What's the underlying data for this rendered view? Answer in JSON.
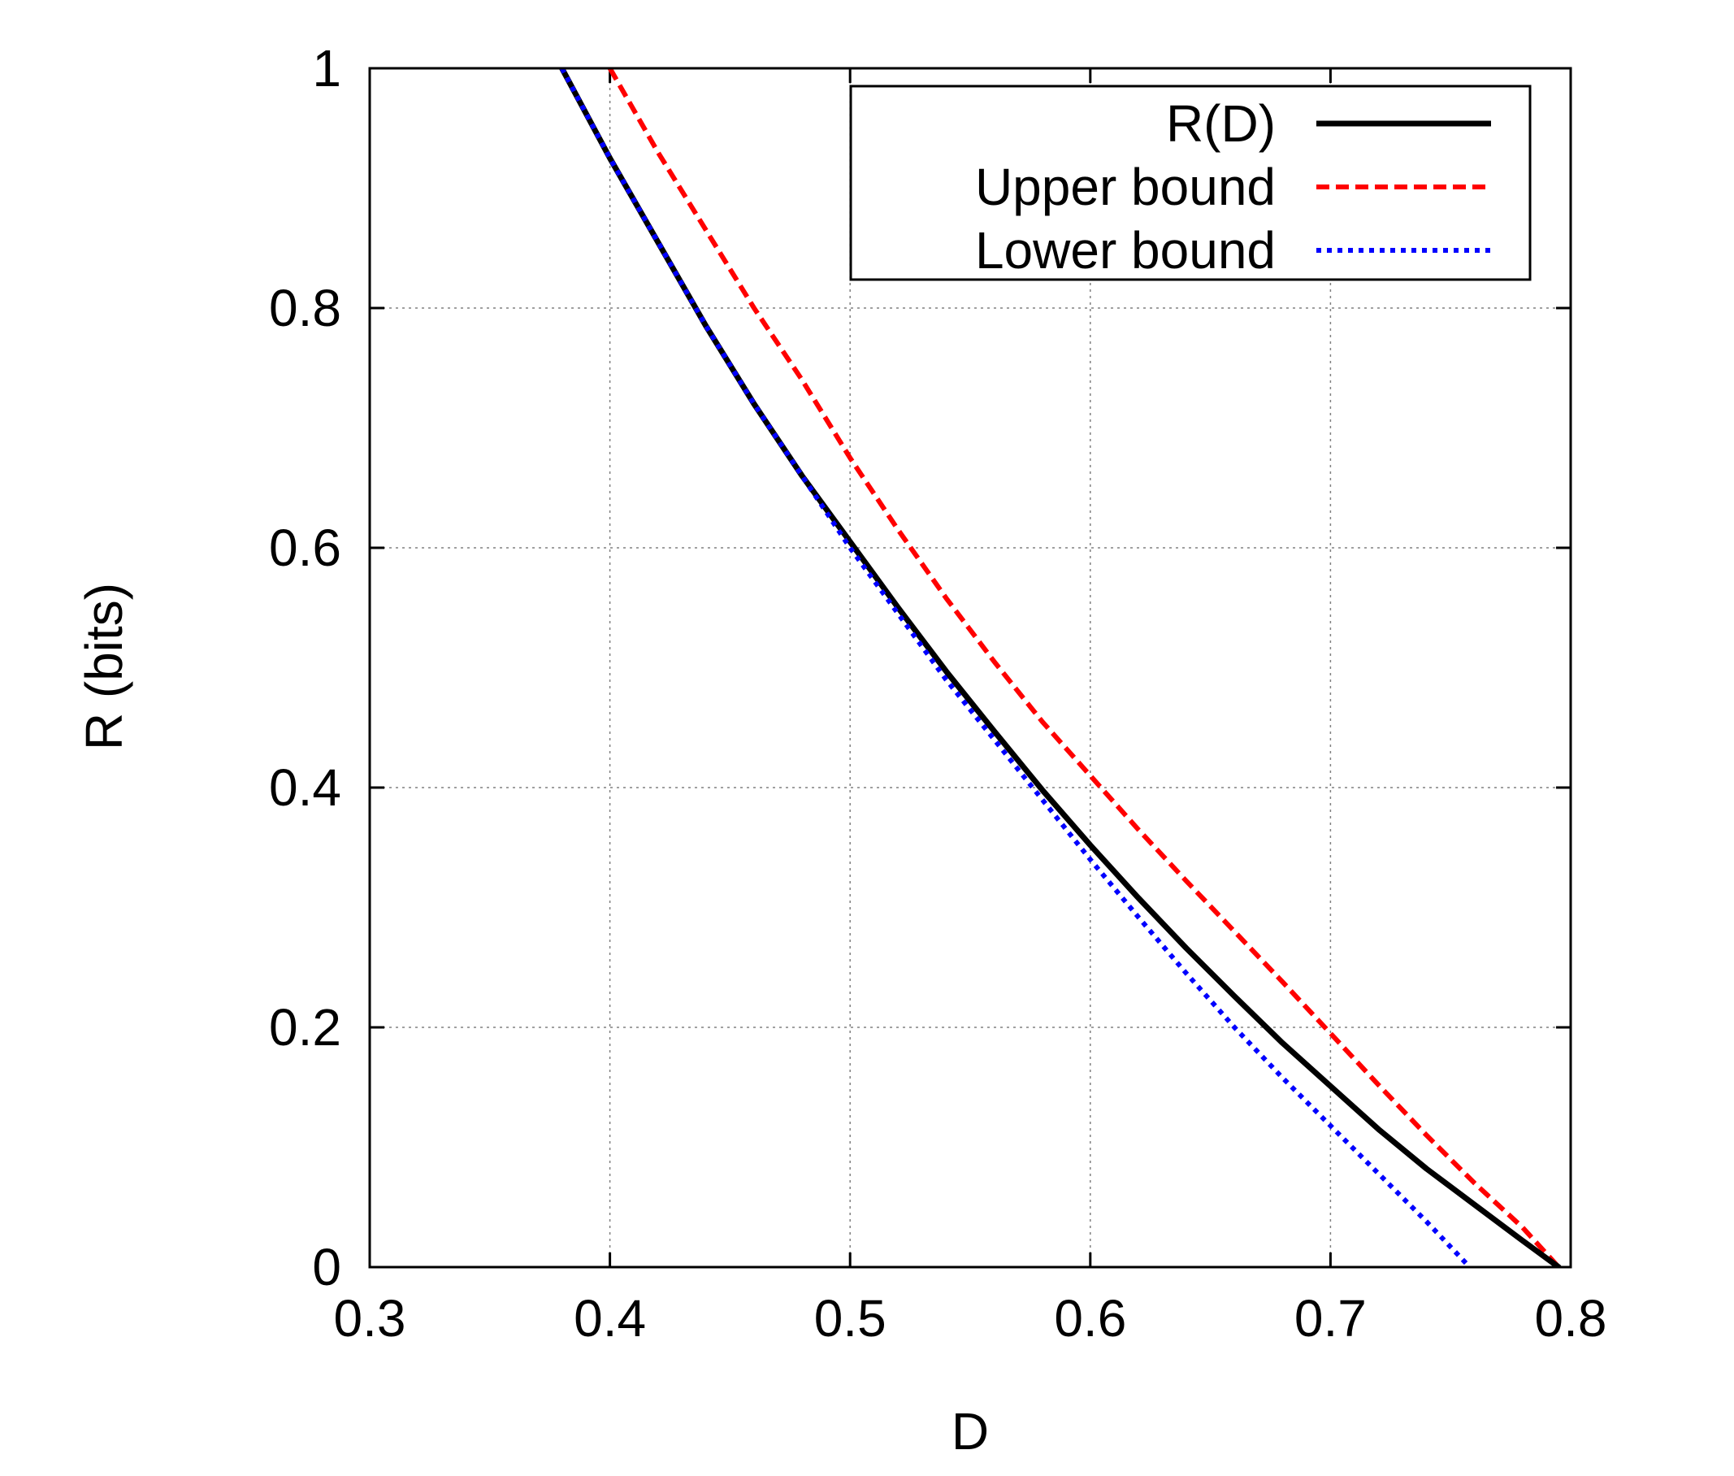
{
  "chart_data": {
    "type": "line",
    "title": "",
    "xlabel": "D",
    "ylabel": "R (bits)",
    "xlim": [
      0.3,
      0.8
    ],
    "ylim": [
      0,
      1
    ],
    "xticks": [
      {
        "value": 0.3,
        "label": "0.3"
      },
      {
        "value": 0.4,
        "label": "0.4"
      },
      {
        "value": 0.5,
        "label": "0.5"
      },
      {
        "value": 0.6,
        "label": "0.6"
      },
      {
        "value": 0.7,
        "label": "0.7"
      },
      {
        "value": 0.8,
        "label": "0.8"
      }
    ],
    "yticks": [
      {
        "value": 0,
        "label": "0"
      },
      {
        "value": 0.2,
        "label": "0.2"
      },
      {
        "value": 0.4,
        "label": "0.4"
      },
      {
        "value": 0.6,
        "label": "0.6"
      },
      {
        "value": 0.8,
        "label": "0.8"
      },
      {
        "value": 1,
        "label": "1"
      }
    ],
    "grid": true,
    "legend_position": "top-right",
    "series": [
      {
        "name": "R(D)",
        "color": "#000000",
        "style": "solid",
        "x": [
          0.38,
          0.4,
          0.42,
          0.44,
          0.46,
          0.48,
          0.5,
          0.52,
          0.54,
          0.56,
          0.58,
          0.6,
          0.62,
          0.64,
          0.66,
          0.68,
          0.7,
          0.72,
          0.74,
          0.76,
          0.78,
          0.795
        ],
        "y": [
          1.0,
          0.925,
          0.855,
          0.785,
          0.72,
          0.66,
          0.605,
          0.55,
          0.497,
          0.447,
          0.398,
          0.352,
          0.308,
          0.266,
          0.226,
          0.187,
          0.151,
          0.115,
          0.082,
          0.052,
          0.022,
          0.0
        ]
      },
      {
        "name": "Upper bound",
        "color": "#ff0000",
        "style": "dashed",
        "x": [
          0.4,
          0.42,
          0.44,
          0.46,
          0.48,
          0.5,
          0.52,
          0.54,
          0.56,
          0.58,
          0.6,
          0.62,
          0.64,
          0.66,
          0.68,
          0.7,
          0.72,
          0.74,
          0.76,
          0.78,
          0.795
        ],
        "y": [
          1.0,
          0.93,
          0.865,
          0.8,
          0.74,
          0.675,
          0.615,
          0.558,
          0.505,
          0.455,
          0.41,
          0.365,
          0.322,
          0.28,
          0.238,
          0.195,
          0.152,
          0.11,
          0.07,
          0.033,
          0.0
        ]
      },
      {
        "name": "Lower bound",
        "color": "#0000ff",
        "style": "dotted",
        "x": [
          0.38,
          0.4,
          0.42,
          0.44,
          0.46,
          0.48,
          0.5,
          0.52,
          0.54,
          0.56,
          0.58,
          0.6,
          0.62,
          0.64,
          0.66,
          0.68,
          0.7,
          0.72,
          0.74,
          0.758
        ],
        "y": [
          1.0,
          0.925,
          0.855,
          0.785,
          0.72,
          0.66,
          0.6,
          0.545,
          0.49,
          0.44,
          0.39,
          0.34,
          0.292,
          0.245,
          0.2,
          0.158,
          0.118,
          0.078,
          0.038,
          0.0
        ]
      }
    ]
  }
}
